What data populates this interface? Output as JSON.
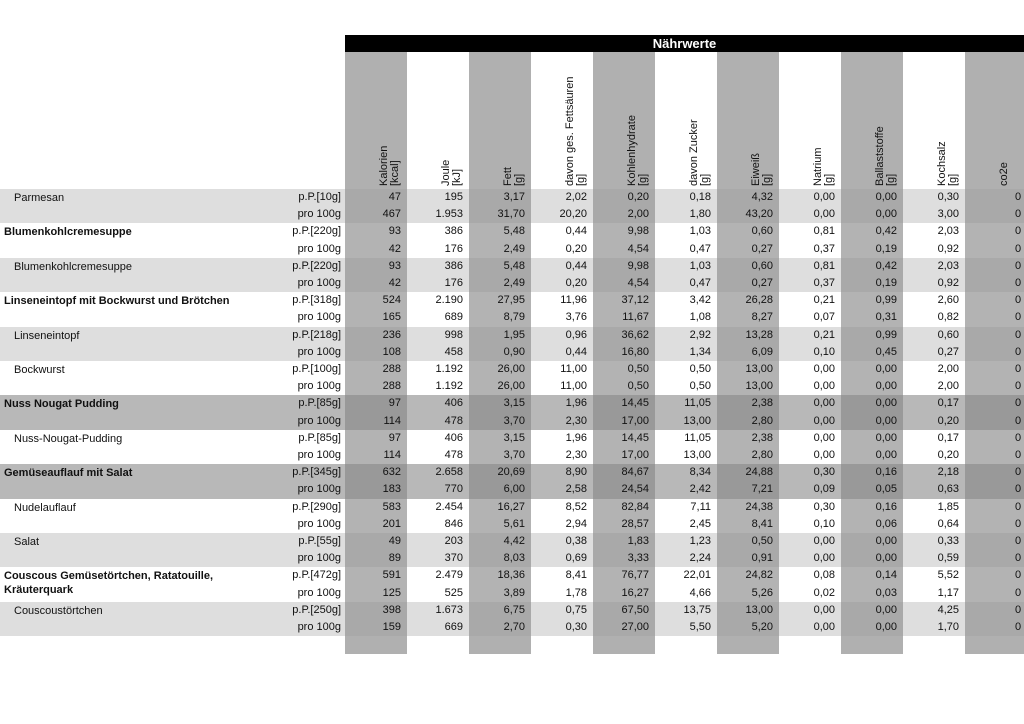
{
  "header": {
    "title": "Nährwerte",
    "columns": [
      {
        "label": "Kalorien",
        "unit": "[kcal]"
      },
      {
        "label": "Joule",
        "unit": "[kJ]"
      },
      {
        "label": "Fett",
        "unit": "[g]"
      },
      {
        "label": "davon ges. Fettsäuren",
        "unit": "[g]"
      },
      {
        "label": "Kohlenhydrate",
        "unit": "[g]"
      },
      {
        "label": "davon Zucker",
        "unit": "[g]"
      },
      {
        "label": "Eiweiß",
        "unit": "[g]"
      },
      {
        "label": "Natrium",
        "unit": "[g]"
      },
      {
        "label": "Ballaststoffe",
        "unit": "[g]"
      },
      {
        "label": "Kochsalz",
        "unit": "[g]"
      },
      {
        "label": "co2e"
      }
    ]
  },
  "table": {
    "items": [
      {
        "name": "Parmesan",
        "bold": false,
        "shade": "#dedede",
        "rows": [
          {
            "portion": "p.P.[10g]",
            "values": [
              "47",
              "195",
              "3,17",
              "2,02",
              "0,20",
              "0,18",
              "4,32",
              "0,00",
              "0,00",
              "0,30",
              "0"
            ]
          },
          {
            "portion": "pro 100g",
            "values": [
              "467",
              "1.953",
              "31,70",
              "20,20",
              "2,00",
              "1,80",
              "43,20",
              "0,00",
              "0,00",
              "3,00",
              "0"
            ]
          }
        ]
      },
      {
        "name": "Blumenkohlcremesuppe",
        "bold": true,
        "shade": "#ffffff",
        "rows": [
          {
            "portion": "p.P.[220g]",
            "values": [
              "93",
              "386",
              "5,48",
              "0,44",
              "9,98",
              "1,03",
              "0,60",
              "0,81",
              "0,42",
              "2,03",
              "0"
            ]
          },
          {
            "portion": "pro 100g",
            "values": [
              "42",
              "176",
              "2,49",
              "0,20",
              "4,54",
              "0,47",
              "0,27",
              "0,37",
              "0,19",
              "0,92",
              "0"
            ]
          }
        ]
      },
      {
        "name": "Blumenkohlcremesuppe",
        "bold": false,
        "shade": "#dedede",
        "rows": [
          {
            "portion": "p.P.[220g]",
            "values": [
              "93",
              "386",
              "5,48",
              "0,44",
              "9,98",
              "1,03",
              "0,60",
              "0,81",
              "0,42",
              "2,03",
              "0"
            ]
          },
          {
            "portion": "pro 100g",
            "values": [
              "42",
              "176",
              "2,49",
              "0,20",
              "4,54",
              "0,47",
              "0,27",
              "0,37",
              "0,19",
              "0,92",
              "0"
            ]
          }
        ]
      },
      {
        "name": "Linseneintopf mit Bockwurst und Brötchen",
        "bold": true,
        "shade": "#ffffff",
        "rows": [
          {
            "portion": "p.P.[318g]",
            "values": [
              "524",
              "2.190",
              "27,95",
              "11,96",
              "37,12",
              "3,42",
              "26,28",
              "0,21",
              "0,99",
              "2,60",
              "0"
            ]
          },
          {
            "portion": "pro 100g",
            "values": [
              "165",
              "689",
              "8,79",
              "3,76",
              "11,67",
              "1,08",
              "8,27",
              "0,07",
              "0,31",
              "0,82",
              "0"
            ]
          }
        ]
      },
      {
        "name": "Linseneintopf",
        "bold": false,
        "shade": "#dedede",
        "rows": [
          {
            "portion": "p.P.[218g]",
            "values": [
              "236",
              "998",
              "1,95",
              "0,96",
              "36,62",
              "2,92",
              "13,28",
              "0,21",
              "0,99",
              "0,60",
              "0"
            ]
          },
          {
            "portion": "pro 100g",
            "values": [
              "108",
              "458",
              "0,90",
              "0,44",
              "16,80",
              "1,34",
              "6,09",
              "0,10",
              "0,45",
              "0,27",
              "0"
            ]
          }
        ]
      },
      {
        "name": "Bockwurst",
        "bold": false,
        "shade": "#ffffff",
        "rows": [
          {
            "portion": "p.P.[100g]",
            "values": [
              "288",
              "1.192",
              "26,00",
              "11,00",
              "0,50",
              "0,50",
              "13,00",
              "0,00",
              "0,00",
              "2,00",
              "0"
            ]
          },
          {
            "portion": "pro 100g",
            "values": [
              "288",
              "1.192",
              "26,00",
              "11,00",
              "0,50",
              "0,50",
              "13,00",
              "0,00",
              "0,00",
              "2,00",
              "0"
            ]
          }
        ]
      },
      {
        "name": "Nuss Nougat Pudding",
        "bold": true,
        "shade": "#b8b8b8",
        "rows": [
          {
            "portion": "p.P.[85g]",
            "values": [
              "97",
              "406",
              "3,15",
              "1,96",
              "14,45",
              "11,05",
              "2,38",
              "0,00",
              "0,00",
              "0,17",
              "0"
            ]
          },
          {
            "portion": "pro 100g",
            "values": [
              "114",
              "478",
              "3,70",
              "2,30",
              "17,00",
              "13,00",
              "2,80",
              "0,00",
              "0,00",
              "0,20",
              "0"
            ]
          }
        ]
      },
      {
        "name": "Nuss-Nougat-Pudding",
        "bold": false,
        "shade": "#ffffff",
        "rows": [
          {
            "portion": "p.P.[85g]",
            "values": [
              "97",
              "406",
              "3,15",
              "1,96",
              "14,45",
              "11,05",
              "2,38",
              "0,00",
              "0,00",
              "0,17",
              "0"
            ]
          },
          {
            "portion": "pro 100g",
            "values": [
              "114",
              "478",
              "3,70",
              "2,30",
              "17,00",
              "13,00",
              "2,80",
              "0,00",
              "0,00",
              "0,20",
              "0"
            ]
          }
        ]
      },
      {
        "name": "Gemüseauflauf mit Salat",
        "bold": true,
        "shade": "#b8b8b8",
        "rows": [
          {
            "portion": "p.P.[345g]",
            "values": [
              "632",
              "2.658",
              "20,69",
              "8,90",
              "84,67",
              "8,34",
              "24,88",
              "0,30",
              "0,16",
              "2,18",
              "0"
            ]
          },
          {
            "portion": "pro 100g",
            "values": [
              "183",
              "770",
              "6,00",
              "2,58",
              "24,54",
              "2,42",
              "7,21",
              "0,09",
              "0,05",
              "0,63",
              "0"
            ]
          }
        ]
      },
      {
        "name": "Nudelauflauf",
        "bold": false,
        "shade": "#ffffff",
        "rows": [
          {
            "portion": "p.P.[290g]",
            "values": [
              "583",
              "2.454",
              "16,27",
              "8,52",
              "82,84",
              "7,11",
              "24,38",
              "0,30",
              "0,16",
              "1,85",
              "0"
            ]
          },
          {
            "portion": "pro 100g",
            "values": [
              "201",
              "846",
              "5,61",
              "2,94",
              "28,57",
              "2,45",
              "8,41",
              "0,10",
              "0,06",
              "0,64",
              "0"
            ]
          }
        ]
      },
      {
        "name": "Salat",
        "bold": false,
        "shade": "#dedede",
        "rows": [
          {
            "portion": "p.P.[55g]",
            "values": [
              "49",
              "203",
              "4,42",
              "0,38",
              "1,83",
              "1,23",
              "0,50",
              "0,00",
              "0,00",
              "0,33",
              "0"
            ]
          },
          {
            "portion": "pro 100g",
            "values": [
              "89",
              "370",
              "8,03",
              "0,69",
              "3,33",
              "2,24",
              "0,91",
              "0,00",
              "0,00",
              "0,59",
              "0"
            ]
          }
        ]
      },
      {
        "name": "Couscous Gemüsetörtchen, Ratatouille, Kräuterquark",
        "bold": true,
        "shade": "#ffffff",
        "rows": [
          {
            "portion": "p.P.[472g]",
            "values": [
              "591",
              "2.479",
              "18,36",
              "8,41",
              "76,77",
              "22,01",
              "24,82",
              "0,08",
              "0,14",
              "5,52",
              "0"
            ]
          },
          {
            "portion": "pro 100g",
            "values": [
              "125",
              "525",
              "3,89",
              "1,78",
              "16,27",
              "4,66",
              "5,26",
              "0,02",
              "0,03",
              "1,17",
              "0"
            ]
          }
        ]
      },
      {
        "name": "Couscoustörtchen",
        "bold": false,
        "shade": "#dedede",
        "rows": [
          {
            "portion": "p.P.[250g]",
            "values": [
              "398",
              "1.673",
              "6,75",
              "0,75",
              "67,50",
              "13,75",
              "13,00",
              "0,00",
              "0,00",
              "4,25",
              "0"
            ]
          },
          {
            "portion": "pro 100g",
            "values": [
              "159",
              "669",
              "2,70",
              "0,30",
              "27,00",
              "5,50",
              "5,20",
              "0,00",
              "0,00",
              "1,70",
              "0"
            ]
          }
        ]
      }
    ]
  }
}
